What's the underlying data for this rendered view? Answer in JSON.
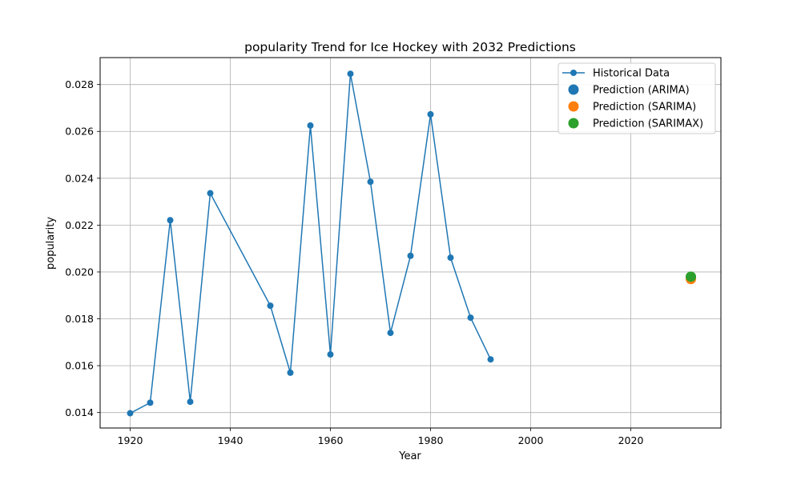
{
  "chart_data": {
    "type": "line",
    "title": "popularity Trend for Ice Hockey with 2032 Predictions",
    "xlabel": "Year",
    "ylabel": "popularity",
    "xlim": [
      1914,
      2038
    ],
    "ylim": [
      0.01334,
      0.02915
    ],
    "x_ticks": [
      1920,
      1940,
      1960,
      1980,
      2000,
      2020
    ],
    "y_ticks": [
      0.014,
      0.016,
      0.018,
      0.02,
      0.022,
      0.024,
      0.026,
      0.028
    ],
    "grid": true,
    "legend_position": "top-right",
    "series": [
      {
        "name": "Historical Data",
        "color": "#1f77b4",
        "marker": "circle",
        "x": [
          1920,
          1924,
          1928,
          1932,
          1936,
          1948,
          1952,
          1956,
          1960,
          1964,
          1968,
          1972,
          1976,
          1980,
          1984,
          1988,
          1992
        ],
        "y": [
          0.01397,
          0.01442,
          0.02221,
          0.01446,
          0.02336,
          0.01856,
          0.0157,
          0.02625,
          0.01648,
          0.02846,
          0.02385,
          0.0174,
          0.02069,
          0.02673,
          0.02061,
          0.01805,
          0.01627
        ]
      }
    ],
    "predictions": [
      {
        "name": "Prediction (ARIMA)",
        "color": "#1f77b4",
        "x": 2032,
        "y": 0.01975
      },
      {
        "name": "Prediction (SARIMA)",
        "color": "#ff7f0e",
        "x": 2032,
        "y": 0.0197
      },
      {
        "name": "Prediction (SARIMAX)",
        "color": "#2ca02c",
        "x": 2032,
        "y": 0.0198
      }
    ]
  }
}
